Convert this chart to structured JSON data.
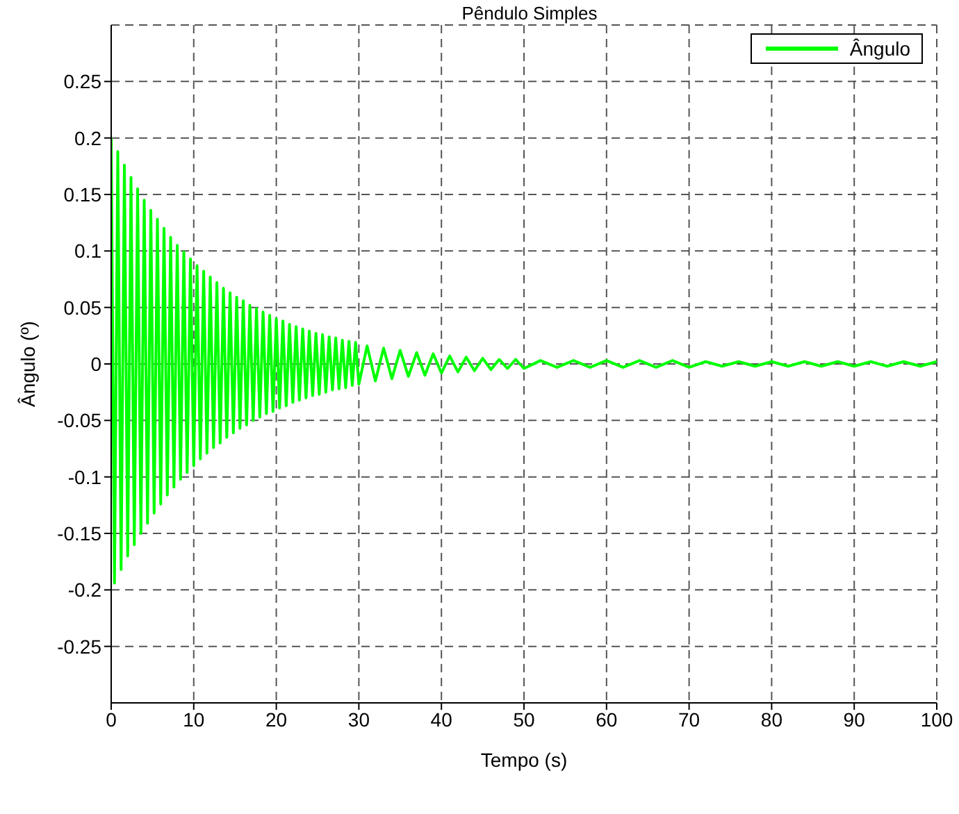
{
  "chart_data": {
    "type": "line",
    "title": "Pêndulo Simples",
    "xlabel": "Tempo (s)",
    "ylabel": "Ângulo (º)",
    "xlim": [
      0,
      100
    ],
    "xticks": [
      0,
      10,
      20,
      30,
      40,
      50,
      60,
      70,
      80,
      90,
      100
    ],
    "ylim": [
      -0.3,
      0.3
    ],
    "yticks": [
      -0.25,
      -0.2,
      -0.15,
      -0.1,
      -0.05,
      0,
      0.05,
      0.1,
      0.15,
      0.2,
      0.25
    ],
    "grid": true,
    "legend": "top right",
    "line_style": "solid",
    "series": [
      {
        "name": "Ângulo",
        "color": "#00ff00",
        "x": [
          0,
          0.4,
          0.8,
          1.2,
          1.6,
          2.0,
          2.4,
          2.8,
          3.2,
          3.6,
          4.0,
          4.4,
          4.8,
          5.2,
          5.6,
          6.0,
          6.4,
          6.8,
          7.2,
          7.6,
          8.0,
          8.4,
          8.8,
          9.2,
          9.6,
          10,
          10.4,
          10.8,
          11.2,
          11.6,
          12,
          12.4,
          12.8,
          13.2,
          13.6,
          14,
          14.4,
          14.8,
          15.2,
          15.6,
          16,
          16.4,
          16.8,
          17.2,
          17.6,
          18,
          18.4,
          18.8,
          19.2,
          19.6,
          20,
          20.4,
          20.8,
          21.2,
          21.6,
          22,
          22.4,
          22.8,
          23.2,
          23.6,
          24,
          24.4,
          24.8,
          25.2,
          25.6,
          26,
          26.4,
          26.8,
          27.2,
          27.6,
          28,
          28.4,
          28.8,
          29.2,
          29.6,
          30,
          31,
          32,
          33,
          34,
          35,
          36,
          37,
          38,
          39,
          40,
          41,
          42,
          43,
          44,
          45,
          46,
          47,
          48,
          49,
          50,
          52,
          54,
          56,
          58,
          60,
          62,
          64,
          66,
          68,
          70,
          72,
          74,
          76,
          78,
          80,
          82,
          84,
          86,
          88,
          90,
          92,
          94,
          96,
          98,
          100
        ],
        "values": [
          0.2,
          -0.194,
          0.188,
          -0.182,
          0.176,
          -0.17,
          0.165,
          -0.16,
          0.155,
          -0.15,
          0.145,
          -0.141,
          0.136,
          -0.132,
          0.128,
          -0.124,
          0.12,
          -0.116,
          0.112,
          -0.109,
          0.105,
          -0.102,
          0.099,
          -0.096,
          0.093,
          -0.09,
          0.087,
          -0.084,
          0.082,
          -0.079,
          0.077,
          -0.074,
          0.072,
          -0.07,
          0.067,
          -0.065,
          0.063,
          -0.061,
          0.059,
          -0.057,
          0.056,
          -0.054,
          0.052,
          -0.05,
          0.049,
          -0.047,
          0.046,
          -0.044,
          0.043,
          -0.042,
          0.04,
          -0.039,
          0.038,
          -0.037,
          0.035,
          -0.034,
          0.033,
          -0.032,
          0.031,
          -0.03,
          0.029,
          -0.028,
          0.027,
          -0.027,
          0.026,
          -0.025,
          0.024,
          -0.023,
          0.023,
          -0.022,
          0.021,
          -0.021,
          0.02,
          -0.019,
          0.019,
          -0.018,
          0.016,
          -0.015,
          0.014,
          -0.013,
          0.012,
          -0.011,
          0.01,
          -0.01,
          0.009,
          -0.008,
          0.007,
          -0.007,
          0.006,
          -0.006,
          0.005,
          -0.005,
          0.004,
          -0.004,
          0.004,
          -0.004,
          0.003,
          -0.003,
          0.003,
          -0.003,
          0.003,
          -0.003,
          0.003,
          -0.003,
          0.003,
          -0.003,
          0.002,
          -0.002,
          0.002,
          -0.002,
          0.002,
          -0.002,
          0.002,
          -0.002,
          0.002,
          -0.002,
          0.002,
          -0.002,
          0.002,
          -0.002,
          0.002
        ]
      }
    ]
  }
}
